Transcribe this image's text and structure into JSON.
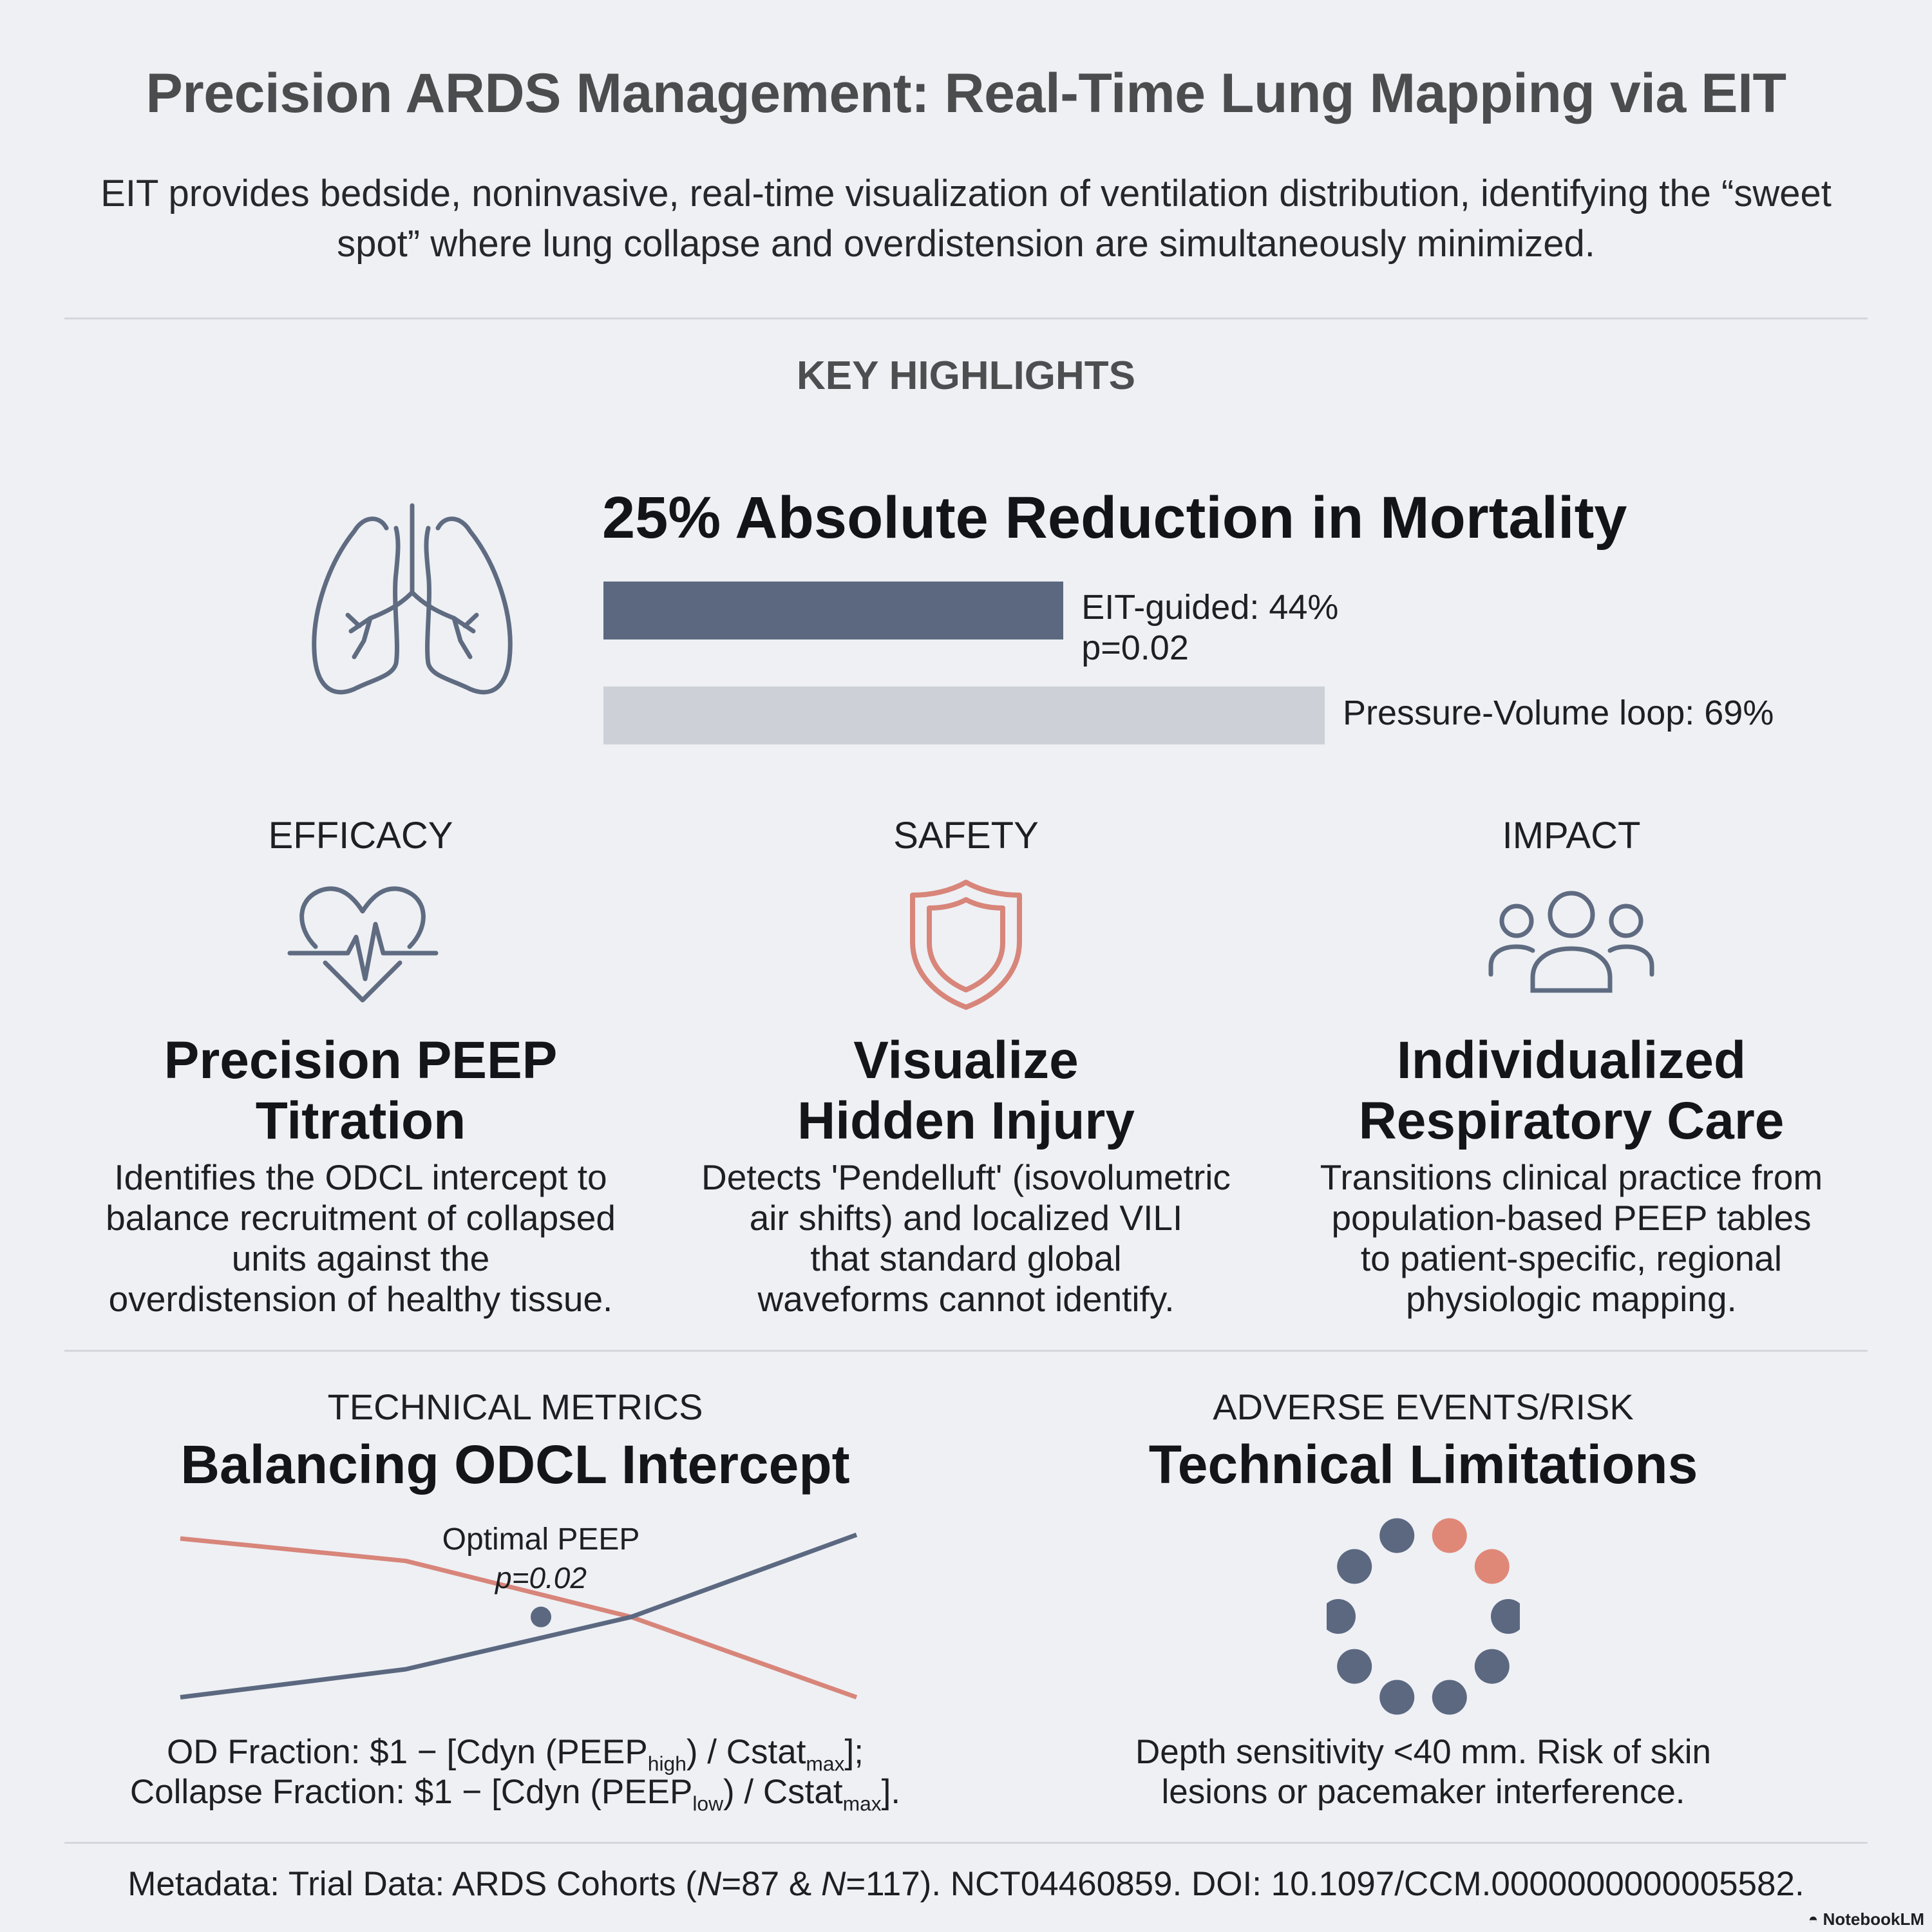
{
  "header": {
    "title": "Precision ARDS Management: Real-Time Lung Mapping via EIT",
    "subtitle": "EIT provides bedside, noninvasive, real-time visualization of ventilation distribution, identifying the “sweet spot” where lung collapse and overdistension are simultaneously minimized."
  },
  "highlights": {
    "label": "KEY HIGHLIGHTS",
    "icon": "lungs-icon",
    "headline": "25% Absolute Reduction in Mortality",
    "bars": [
      {
        "label": "EIT-guided: 44%",
        "value": 44,
        "pvalue": "p=0.02",
        "color": "#5b6880"
      },
      {
        "label": "Pressure-Volume loop: 69%",
        "value": 69,
        "color": "#cdd1d7"
      }
    ]
  },
  "cards": [
    {
      "category": "EFFICACY",
      "icon": "heart-pulse-icon",
      "title_line1": "Precision PEEP",
      "title_line2": "Titration",
      "body": [
        "Identifies the ODCL intercept to",
        "balance recruitment of collapsed",
        "units against the",
        "overdistension of healthy tissue."
      ]
    },
    {
      "category": "SAFETY",
      "icon": "shield-icon",
      "title_line1": "Visualize",
      "title_line2": "Hidden Injury",
      "body": [
        "Detects 'Pendelluft' (isovolumetric",
        "air shifts) and localized VILI",
        "that standard global",
        "waveforms cannot identify."
      ]
    },
    {
      "category": "IMPACT",
      "icon": "people-group-icon",
      "title_line1": "Individualized",
      "title_line2": "Respiratory Care",
      "body": [
        "Transitions clinical practice from",
        "population-based PEEP tables",
        "to patient-specific, regional",
        "physiologic mapping."
      ]
    }
  ],
  "technical": {
    "label": "TECHNICAL METRICS",
    "title": "Balancing ODCL Intercept",
    "annotation": "Optimal PEEP",
    "pvalue": "p=0.02",
    "formula1": {
      "pre": "OD Fraction: $1 − [Cdyn (PEEP",
      "sub1": "high",
      "mid": ") / Cstat",
      "sub2": "max",
      "post": "];"
    },
    "formula2": {
      "pre": "Collapse Fraction: $1 − [Cdyn (PEEP",
      "sub1": "low",
      "mid": ") / Cstat",
      "sub2": "max",
      "post": "]."
    }
  },
  "chart_data": {
    "type": "line",
    "title": "Balancing ODCL Intercept",
    "xlabel": "",
    "ylabel": "",
    "x": [
      0,
      1,
      2,
      3
    ],
    "series": [
      {
        "values": [
          0.9,
          0.78,
          0.48,
          0.05
        ],
        "color": "#d8857a"
      },
      {
        "values": [
          0.05,
          0.2,
          0.48,
          0.92
        ],
        "color": "#5b6880"
      }
    ],
    "annotations": [
      {
        "text": "Optimal PEEP",
        "sub": "p=0.02",
        "x": 1.6,
        "y": 0.48
      }
    ],
    "ylim": [
      0,
      1
    ],
    "grid": false
  },
  "risk": {
    "label": "ADVERSE EVENTS/RISK",
    "title": "Technical Limitations",
    "dots_total": 10,
    "dots_highlighted": 2,
    "dot_color": "#5b6880",
    "highlight_color": "#e08878",
    "text_line1": "Depth sensitivity <40 mm. Risk of skin",
    "text_line2": "lesions or pacemaker interference."
  },
  "footer": {
    "meta_pre": "Metadata: Trial Data: ARDS Cohorts (",
    "n1": "N",
    "n1_val": "=87 & ",
    "n2": "N",
    "n2_val": "=117). NCT04460859. DOI: 10.1097/CCM.0000000000005582.",
    "brand": "NotebookLM",
    "brand_icon": "notebooklm-logo-icon"
  }
}
